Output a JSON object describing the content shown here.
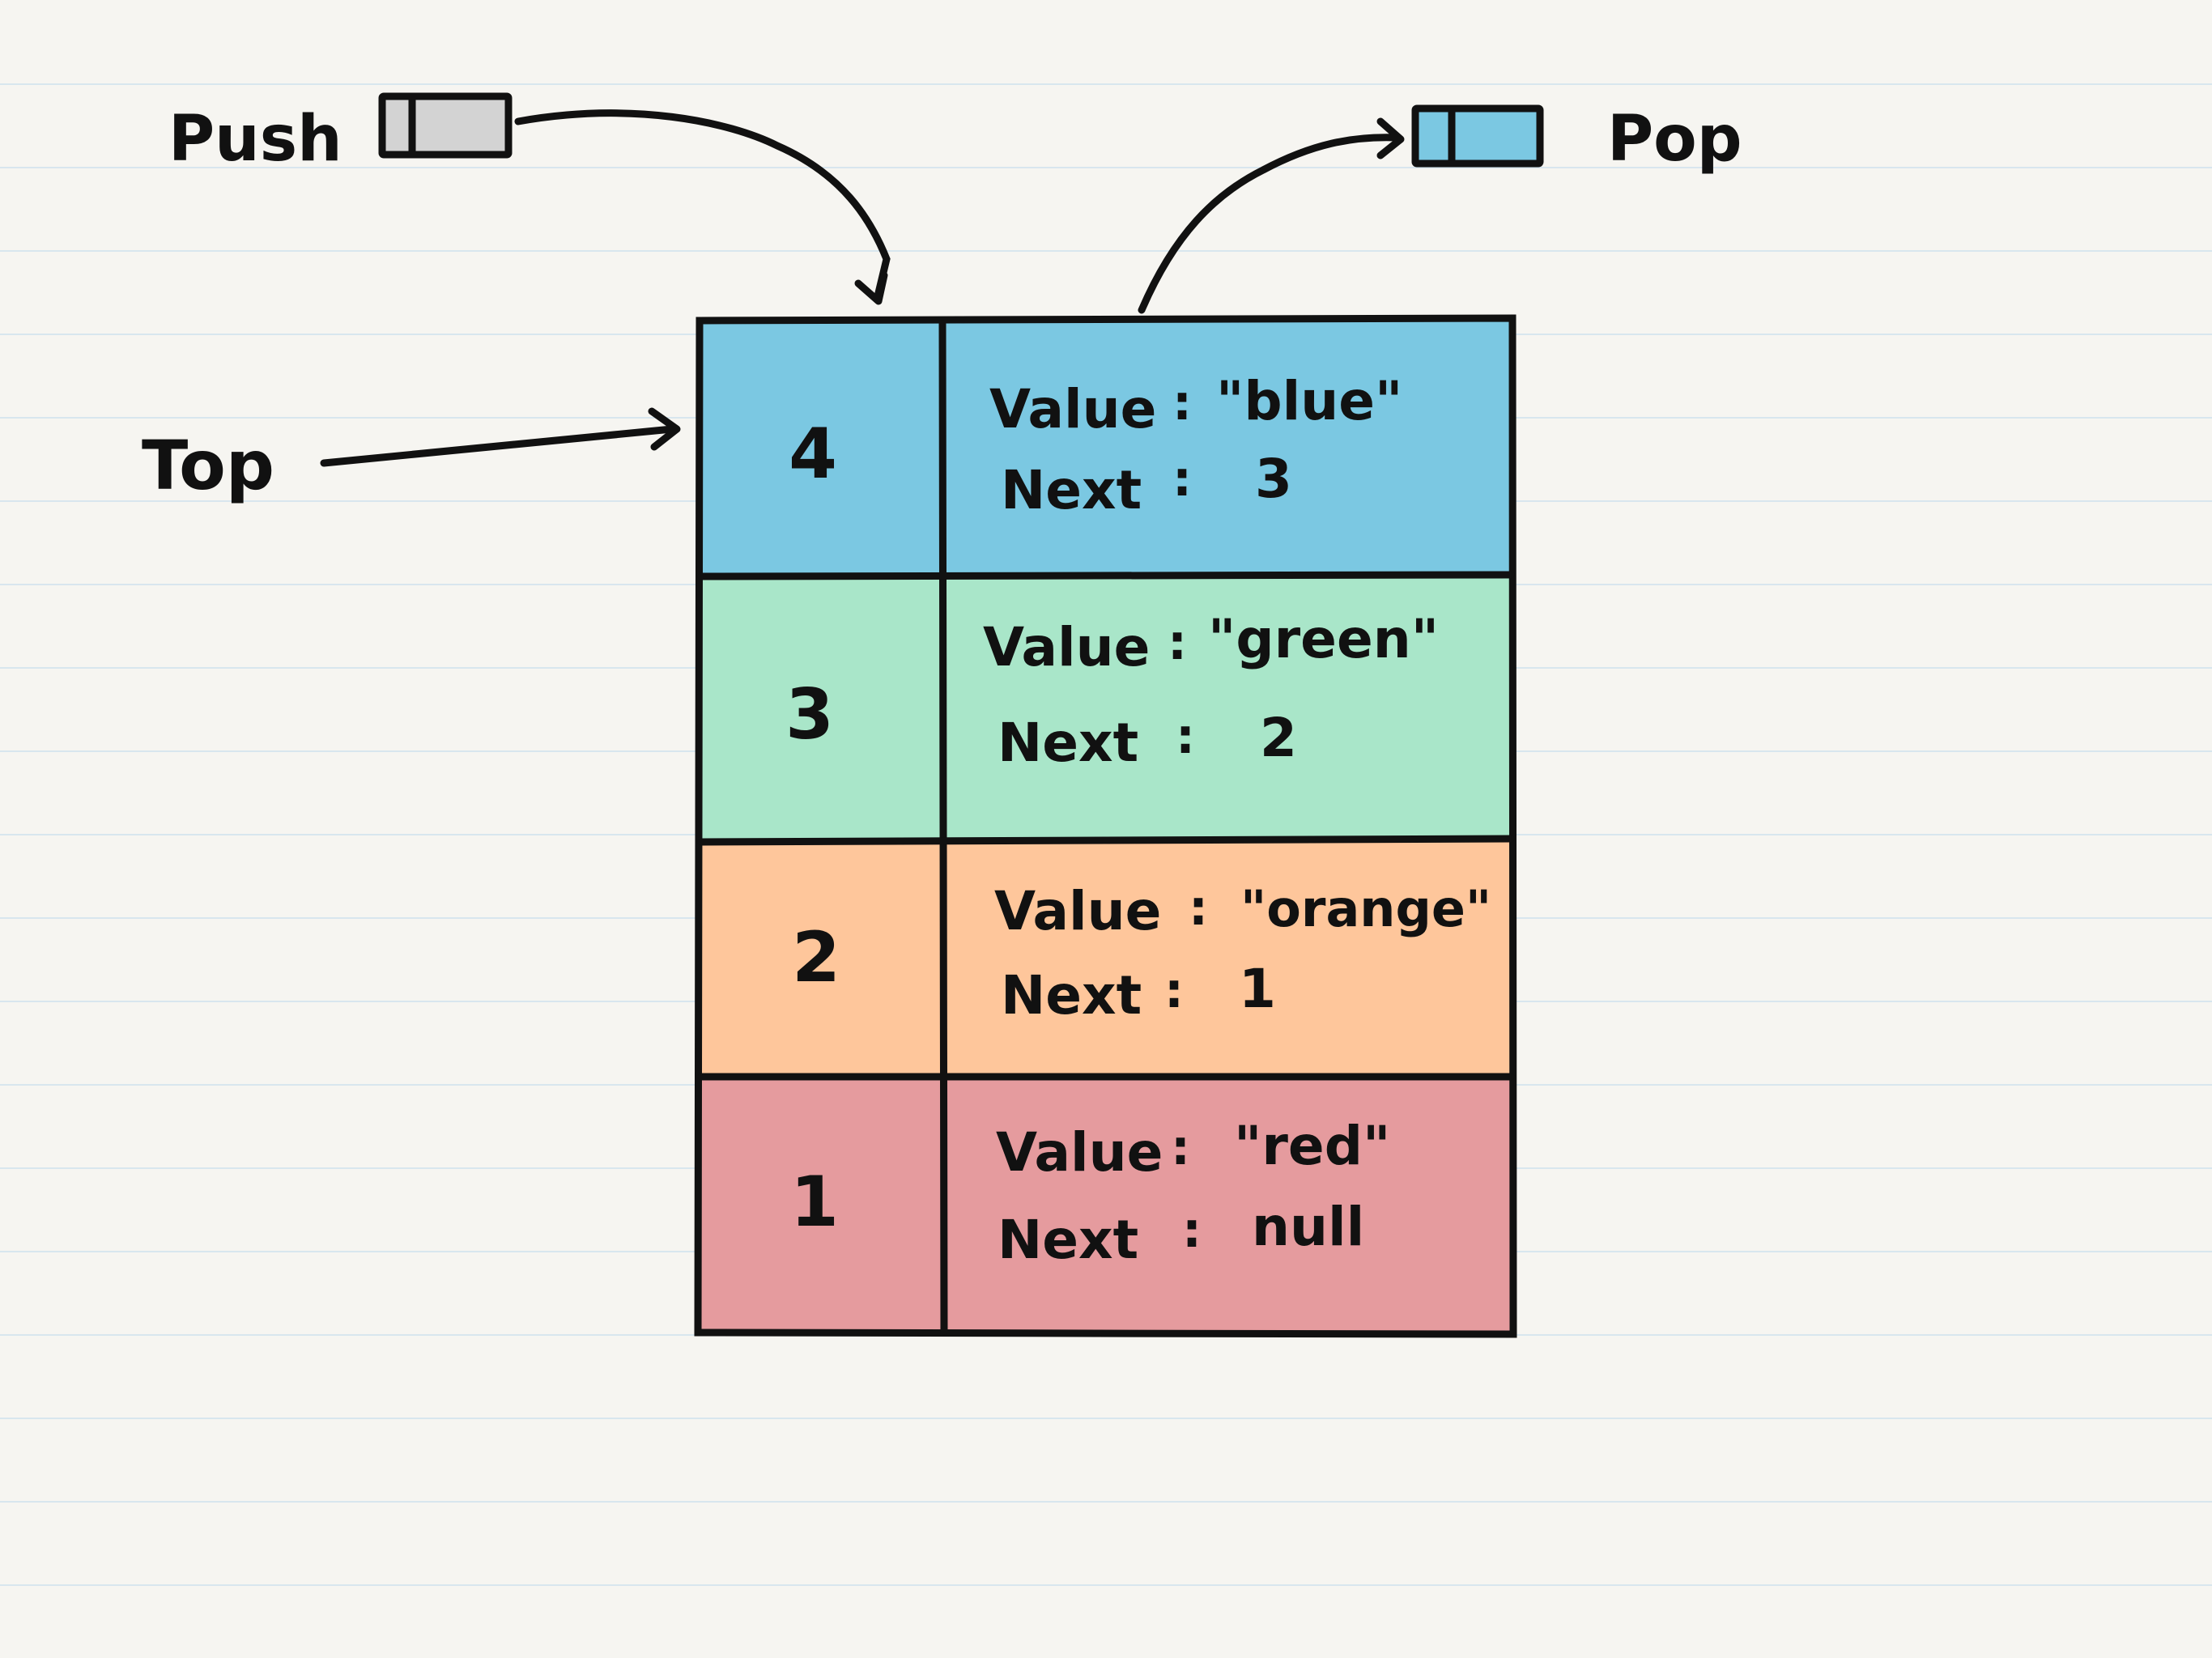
{
  "labels": {
    "push": "Push",
    "pop": "Pop",
    "top": "Top"
  },
  "nodes": [
    {
      "id": "4",
      "value_label": "Value",
      "value": "\"blue\"",
      "next_label": "Next",
      "next": "3",
      "color": "#7bc8e2"
    },
    {
      "id": "3",
      "value_label": "Value",
      "value": "\"green\"",
      "next_label": "Next",
      "next": "2",
      "color": "#a9e6c9"
    },
    {
      "id": "2",
      "value_label": "Value",
      "value": "\"orange\"",
      "next_label": "Next",
      "next": "1",
      "color": "#fec69b"
    },
    {
      "id": "1",
      "value_label": "Value",
      "value": "\"red\"",
      "next_label": "Next",
      "next": "null",
      "color": "#e59b9e"
    }
  ],
  "colors": {
    "push_box": "#d3d3d3",
    "pop_box": "#7bc8e2",
    "paper": "#f6f5f1",
    "rule_lines": "#d8e6ee",
    "ink": "#111111"
  }
}
